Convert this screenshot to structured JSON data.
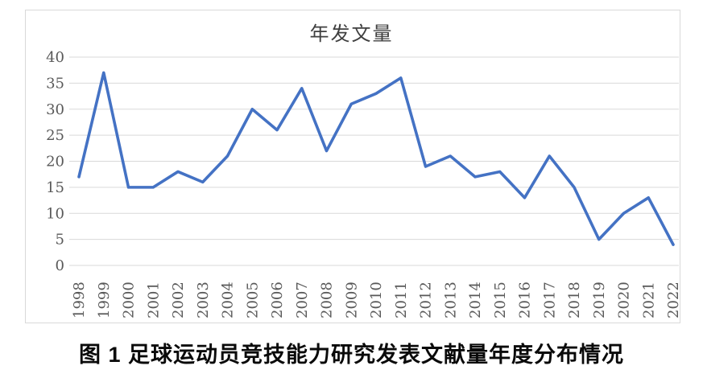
{
  "page": {
    "caption": "图 1 足球运动员竞技能力研究发表文献量年度分布情况"
  },
  "chart_data": {
    "type": "line",
    "title": "年发文量",
    "x": [
      "1998",
      "1999",
      "2000",
      "2001",
      "2002",
      "2003",
      "2004",
      "2005",
      "2006",
      "2007",
      "2008",
      "2009",
      "2010",
      "2011",
      "2012",
      "2013",
      "2014",
      "2015",
      "2016",
      "2017",
      "2018",
      "2019",
      "2020",
      "2021",
      "2022"
    ],
    "series": [
      {
        "name": "年发文量",
        "values": [
          17,
          37,
          15,
          15,
          18,
          16,
          21,
          30,
          26,
          34,
          22,
          31,
          33,
          36,
          19,
          21,
          17,
          18,
          13,
          21,
          15,
          5,
          10,
          13,
          4
        ]
      }
    ],
    "ylim": [
      0,
      40
    ],
    "ytick_step": 5,
    "ytick_labels": [
      "0",
      "5",
      "10",
      "15",
      "20",
      "25",
      "30",
      "35",
      "40"
    ],
    "grid": "horizontal",
    "legend_position": "none",
    "x_label_rotation": -90,
    "colors": {
      "line": "#4472C4",
      "gridline": "#d9d9d9",
      "tick_label": "#595959",
      "title": "#404040",
      "caption": "#0a0a0a",
      "frame_border": "#d9d9d9",
      "background": "#ffffff"
    }
  }
}
